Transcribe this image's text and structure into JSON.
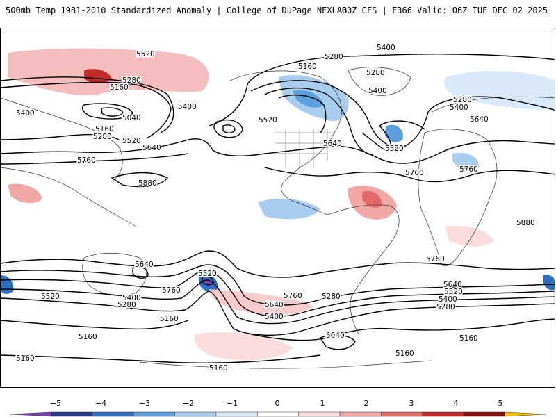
{
  "header": {
    "product_title": "500mb Temp 1981-2010 Standardized Anomaly | College of DuPage NEXLAB",
    "run_info": "00Z GFS | F366 Valid: 06Z TUE DEC 02 2025"
  },
  "map": {
    "contour_labels": [
      "5520",
      "5280",
      "5160",
      "5400",
      "5160",
      "5280",
      "5040",
      "5520",
      "5640",
      "5760",
      "5880",
      "5400",
      "5520",
      "5160",
      "5280",
      "5400",
      "5280",
      "5400",
      "5520",
      "5760",
      "5640",
      "5520",
      "5280",
      "5400",
      "5640",
      "5760",
      "5880",
      "5760",
      "5640",
      "5520",
      "5400",
      "5280",
      "5640",
      "5520",
      "5760",
      "5400",
      "5280",
      "5160",
      "5520",
      "5640",
      "5400",
      "5760",
      "5280",
      "5040",
      "5160",
      "5160",
      "5160",
      "5160",
      "5160"
    ]
  },
  "colorbar": {
    "ticks": [
      "−5",
      "−4",
      "−3",
      "−2",
      "−1",
      "0",
      "1",
      "2",
      "3",
      "4",
      "5"
    ],
    "colors": [
      "#7b3fb2",
      "#253a87",
      "#2c6fc3",
      "#5b9fdc",
      "#a8cdee",
      "#d9e9f8",
      "#ffffff",
      "#fbdcdc",
      "#f2a7a7",
      "#e06a6a",
      "#c22b2b",
      "#8b0f0f",
      "#f5c400"
    ]
  }
}
